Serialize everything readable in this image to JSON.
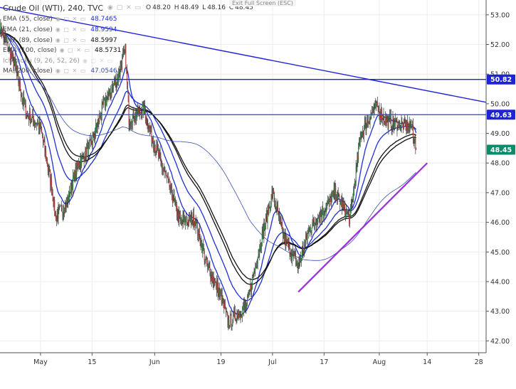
{
  "symbol_title": "Crude Oil (WTI), 240, TVC",
  "toolbar_controls": "◉ ▢ ✕ ▭",
  "fullscreen_hint": "Exit Full Screen (ESC)",
  "ohlc": {
    "o_label": "O",
    "o": "48.20",
    "h_label": "H",
    "h": "48.49",
    "l_label": "L",
    "l": "48.16",
    "c_label": "C",
    "c": "48.45"
  },
  "legend": [
    {
      "name": "EMA (55, close)",
      "value": "48.7465",
      "color": "#1e2fd6"
    },
    {
      "name": "EMA (21, close)",
      "value": "48.9594",
      "color": "#1e2fd6"
    },
    {
      "name": "EMA (89, close)",
      "value": "48.5997",
      "color": "#111111"
    },
    {
      "name": "EMA (100, close)",
      "value": "48.5731",
      "color": "#111111"
    },
    {
      "name": "Ichimoku (9, 26, 52, 26)",
      "value": "",
      "color": "#7a7a7a"
    },
    {
      "name": "MA (200, close)",
      "value": "47.0546",
      "color": "#3b4fb0"
    }
  ],
  "price_tags": [
    {
      "label": "50.82",
      "value": 50.82,
      "color": "#1e22d8"
    },
    {
      "label": "49.63",
      "value": 49.63,
      "color": "#1e22d8"
    },
    {
      "label": "48.45",
      "value": 48.45,
      "color": "#0d8a6a"
    }
  ],
  "chart_data": {
    "type": "line",
    "title": "Crude Oil (WTI), 240, TVC",
    "y_axis": {
      "range": [
        41.6,
        53.5
      ],
      "ticks": [
        "53.00",
        "52.00",
        "51.00",
        "50.00",
        "49.00",
        "48.00",
        "47.00",
        "46.00",
        "45.00",
        "44.00",
        "43.00",
        "42.00"
      ],
      "tick_values": [
        53,
        52,
        51,
        50,
        49,
        48,
        47,
        46,
        45,
        44,
        43,
        42
      ]
    },
    "x_axis": {
      "ticks": [
        "May",
        "15",
        "Jun",
        "19",
        "Jul",
        "17",
        "Aug",
        "14",
        "28"
      ],
      "tick_dates": [
        "2017-05-01",
        "2017-05-15",
        "2017-06-01",
        "2017-06-19",
        "2017-07-03",
        "2017-07-17",
        "2017-08-01",
        "2017-08-14",
        "2017-08-28"
      ],
      "range": [
        "2017-04-20",
        "2017-08-30"
      ]
    },
    "grid": true,
    "legend_position": "top-left",
    "series": [
      {
        "name": "Crude Oil (WTI)",
        "color": "#222222",
        "x": [
          "2017-04-20",
          "2017-04-24",
          "2017-04-27",
          "2017-05-01",
          "2017-05-04",
          "2017-05-05",
          "2017-05-08",
          "2017-05-11",
          "2017-05-15",
          "2017-05-18",
          "2017-05-22",
          "2017-05-24",
          "2017-05-25",
          "2017-05-29",
          "2017-06-01",
          "2017-06-05",
          "2017-06-08",
          "2017-06-12",
          "2017-06-15",
          "2017-06-19",
          "2017-06-21",
          "2017-06-26",
          "2017-06-29",
          "2017-07-03",
          "2017-07-06",
          "2017-07-10",
          "2017-07-13",
          "2017-07-17",
          "2017-07-20",
          "2017-07-24",
          "2017-07-27",
          "2017-07-31",
          "2017-08-03",
          "2017-08-07",
          "2017-08-10",
          "2017-08-11"
        ],
        "y": [
          52.6,
          51.3,
          49.7,
          49.2,
          47.2,
          46.2,
          46.6,
          47.9,
          48.7,
          49.9,
          50.9,
          51.8,
          49.5,
          49.8,
          48.6,
          47.2,
          46.0,
          46.1,
          44.6,
          43.5,
          42.6,
          43.2,
          44.9,
          47.0,
          45.5,
          44.5,
          45.8,
          46.4,
          47.0,
          46.1,
          49.0,
          49.9,
          49.4,
          49.3,
          49.2,
          48.45
        ]
      },
      {
        "name": "Trendline (descending)",
        "color": "#1e22d8",
        "x": [
          "2017-04-20",
          "2017-08-30"
        ],
        "y": [
          53.25,
          50.05
        ]
      },
      {
        "name": "Horizontal line",
        "color": "#1e22d8",
        "x": [
          "2017-04-20",
          "2017-08-30"
        ],
        "y": [
          50.82,
          50.82
        ]
      },
      {
        "name": "Horizontal line",
        "color": "#3b4fe0",
        "x": [
          "2017-04-20",
          "2017-08-30"
        ],
        "y": [
          49.63,
          49.63
        ]
      },
      {
        "name": "Trendline (ascending)",
        "color": "#9b30d9",
        "x": [
          "2017-07-10",
          "2017-08-14"
        ],
        "y": [
          43.65,
          48.0
        ]
      }
    ]
  }
}
